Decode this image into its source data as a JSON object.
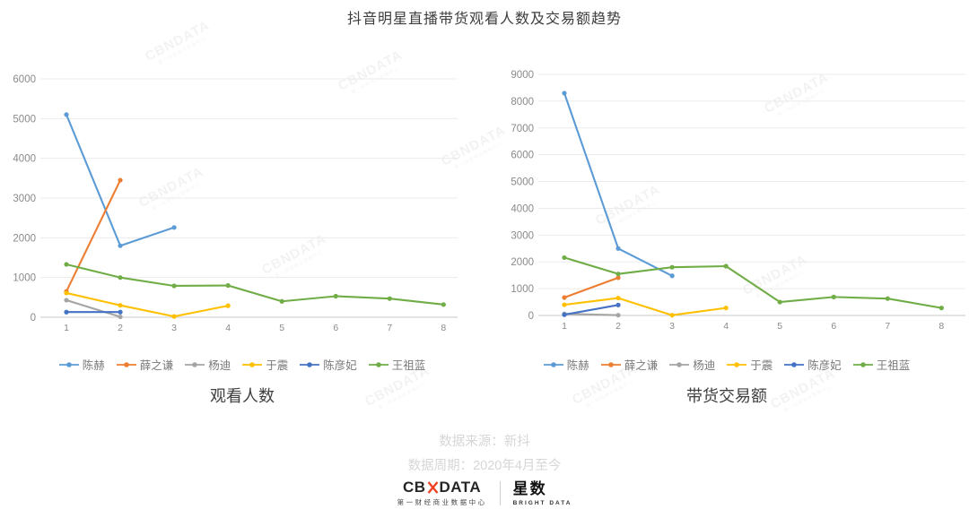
{
  "title": "抖音明星直播带货观看人数及交易额趋势",
  "watermark": {
    "text": "CBNDATA",
    "subtext": "第一财经商业数据中心"
  },
  "chart_data": [
    {
      "type": "line",
      "title": "观看人数",
      "x": [
        "1",
        "2",
        "3",
        "4",
        "5",
        "6",
        "7",
        "8"
      ],
      "xlabel": "",
      "ylabel": "",
      "ylim": [
        0,
        6000
      ],
      "ytick_step": 1000,
      "grid": true,
      "legend_position": "bottom",
      "series": [
        {
          "name": "陈赫",
          "color": "#5B9BD5",
          "values": [
            5100,
            1800,
            2260
          ]
        },
        {
          "name": "薛之谦",
          "color": "#ED7D31",
          "values": [
            650,
            3450
          ]
        },
        {
          "name": "杨迪",
          "color": "#A5A5A5",
          "values": [
            430,
            10
          ]
        },
        {
          "name": "于震",
          "color": "#FFC000",
          "values": [
            610,
            300,
            20,
            290
          ]
        },
        {
          "name": "陈彦妃",
          "color": "#4472C4",
          "values": [
            130,
            130
          ]
        },
        {
          "name": "王祖蓝",
          "color": "#70AD47",
          "values": [
            1330,
            1000,
            790,
            800,
            400,
            530,
            470,
            320
          ]
        }
      ]
    },
    {
      "type": "line",
      "title": "带货交易额",
      "x": [
        "1",
        "2",
        "3",
        "4",
        "5",
        "6",
        "7",
        "8"
      ],
      "xlabel": "",
      "ylabel": "",
      "ylim": [
        0,
        9000
      ],
      "ytick_step": 1000,
      "grid": true,
      "legend_position": "bottom",
      "series": [
        {
          "name": "陈赫",
          "color": "#5B9BD5",
          "values": [
            8300,
            2500,
            1480
          ]
        },
        {
          "name": "薛之谦",
          "color": "#ED7D31",
          "values": [
            670,
            1410
          ]
        },
        {
          "name": "杨迪",
          "color": "#A5A5A5",
          "values": [
            60,
            10
          ]
        },
        {
          "name": "于震",
          "color": "#FFC000",
          "values": [
            400,
            650,
            10,
            280
          ]
        },
        {
          "name": "陈彦妃",
          "color": "#4472C4",
          "values": [
            30,
            390
          ]
        },
        {
          "name": "王祖蓝",
          "color": "#70AD47",
          "values": [
            2160,
            1550,
            1800,
            1840,
            500,
            690,
            630,
            280
          ]
        }
      ]
    }
  ],
  "footer": {
    "source": "数据来源：新抖",
    "period": "数据周期：2020年4月至今"
  },
  "logos": {
    "cbn_left": "CB",
    "cbn_right": "DATA",
    "cbn_full": "CBNDATA",
    "cbn_sub": "第一财经商业数据中心",
    "star_name": "星数",
    "star_sub": "BRIGHT DATA"
  }
}
